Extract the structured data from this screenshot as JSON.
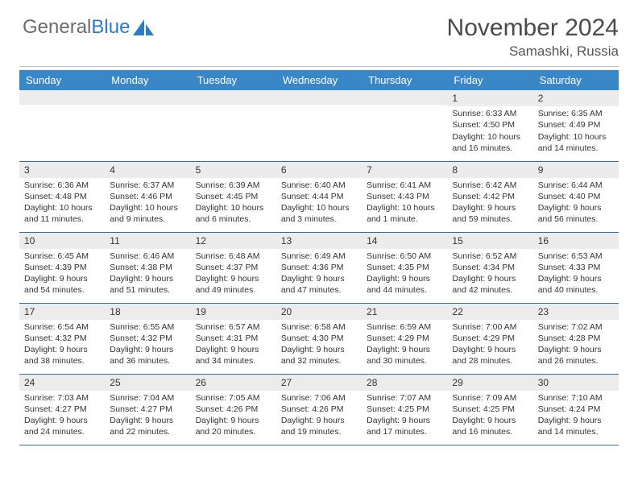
{
  "logo": {
    "text1": "General",
    "text2": "Blue"
  },
  "title": "November 2024",
  "subtitle": "Samashki, Russia",
  "colors": {
    "header_bg": "#3a87c8",
    "header_fg": "#ffffff",
    "daynum_bg": "#ececec",
    "row_border": "#2f6da8",
    "logo_gray": "#6b6b6b",
    "logo_blue": "#2d7bc4"
  },
  "weekdays": [
    "Sunday",
    "Monday",
    "Tuesday",
    "Wednesday",
    "Thursday",
    "Friday",
    "Saturday"
  ],
  "weeks": [
    [
      {
        "n": "",
        "lines": []
      },
      {
        "n": "",
        "lines": []
      },
      {
        "n": "",
        "lines": []
      },
      {
        "n": "",
        "lines": []
      },
      {
        "n": "",
        "lines": []
      },
      {
        "n": "1",
        "lines": [
          "Sunrise: 6:33 AM",
          "Sunset: 4:50 PM",
          "Daylight: 10 hours and 16 minutes."
        ]
      },
      {
        "n": "2",
        "lines": [
          "Sunrise: 6:35 AM",
          "Sunset: 4:49 PM",
          "Daylight: 10 hours and 14 minutes."
        ]
      }
    ],
    [
      {
        "n": "3",
        "lines": [
          "Sunrise: 6:36 AM",
          "Sunset: 4:48 PM",
          "Daylight: 10 hours and 11 minutes."
        ]
      },
      {
        "n": "4",
        "lines": [
          "Sunrise: 6:37 AM",
          "Sunset: 4:46 PM",
          "Daylight: 10 hours and 9 minutes."
        ]
      },
      {
        "n": "5",
        "lines": [
          "Sunrise: 6:39 AM",
          "Sunset: 4:45 PM",
          "Daylight: 10 hours and 6 minutes."
        ]
      },
      {
        "n": "6",
        "lines": [
          "Sunrise: 6:40 AM",
          "Sunset: 4:44 PM",
          "Daylight: 10 hours and 3 minutes."
        ]
      },
      {
        "n": "7",
        "lines": [
          "Sunrise: 6:41 AM",
          "Sunset: 4:43 PM",
          "Daylight: 10 hours and 1 minute."
        ]
      },
      {
        "n": "8",
        "lines": [
          "Sunrise: 6:42 AM",
          "Sunset: 4:42 PM",
          "Daylight: 9 hours and 59 minutes."
        ]
      },
      {
        "n": "9",
        "lines": [
          "Sunrise: 6:44 AM",
          "Sunset: 4:40 PM",
          "Daylight: 9 hours and 56 minutes."
        ]
      }
    ],
    [
      {
        "n": "10",
        "lines": [
          "Sunrise: 6:45 AM",
          "Sunset: 4:39 PM",
          "Daylight: 9 hours and 54 minutes."
        ]
      },
      {
        "n": "11",
        "lines": [
          "Sunrise: 6:46 AM",
          "Sunset: 4:38 PM",
          "Daylight: 9 hours and 51 minutes."
        ]
      },
      {
        "n": "12",
        "lines": [
          "Sunrise: 6:48 AM",
          "Sunset: 4:37 PM",
          "Daylight: 9 hours and 49 minutes."
        ]
      },
      {
        "n": "13",
        "lines": [
          "Sunrise: 6:49 AM",
          "Sunset: 4:36 PM",
          "Daylight: 9 hours and 47 minutes."
        ]
      },
      {
        "n": "14",
        "lines": [
          "Sunrise: 6:50 AM",
          "Sunset: 4:35 PM",
          "Daylight: 9 hours and 44 minutes."
        ]
      },
      {
        "n": "15",
        "lines": [
          "Sunrise: 6:52 AM",
          "Sunset: 4:34 PM",
          "Daylight: 9 hours and 42 minutes."
        ]
      },
      {
        "n": "16",
        "lines": [
          "Sunrise: 6:53 AM",
          "Sunset: 4:33 PM",
          "Daylight: 9 hours and 40 minutes."
        ]
      }
    ],
    [
      {
        "n": "17",
        "lines": [
          "Sunrise: 6:54 AM",
          "Sunset: 4:32 PM",
          "Daylight: 9 hours and 38 minutes."
        ]
      },
      {
        "n": "18",
        "lines": [
          "Sunrise: 6:55 AM",
          "Sunset: 4:32 PM",
          "Daylight: 9 hours and 36 minutes."
        ]
      },
      {
        "n": "19",
        "lines": [
          "Sunrise: 6:57 AM",
          "Sunset: 4:31 PM",
          "Daylight: 9 hours and 34 minutes."
        ]
      },
      {
        "n": "20",
        "lines": [
          "Sunrise: 6:58 AM",
          "Sunset: 4:30 PM",
          "Daylight: 9 hours and 32 minutes."
        ]
      },
      {
        "n": "21",
        "lines": [
          "Sunrise: 6:59 AM",
          "Sunset: 4:29 PM",
          "Daylight: 9 hours and 30 minutes."
        ]
      },
      {
        "n": "22",
        "lines": [
          "Sunrise: 7:00 AM",
          "Sunset: 4:29 PM",
          "Daylight: 9 hours and 28 minutes."
        ]
      },
      {
        "n": "23",
        "lines": [
          "Sunrise: 7:02 AM",
          "Sunset: 4:28 PM",
          "Daylight: 9 hours and 26 minutes."
        ]
      }
    ],
    [
      {
        "n": "24",
        "lines": [
          "Sunrise: 7:03 AM",
          "Sunset: 4:27 PM",
          "Daylight: 9 hours and 24 minutes."
        ]
      },
      {
        "n": "25",
        "lines": [
          "Sunrise: 7:04 AM",
          "Sunset: 4:27 PM",
          "Daylight: 9 hours and 22 minutes."
        ]
      },
      {
        "n": "26",
        "lines": [
          "Sunrise: 7:05 AM",
          "Sunset: 4:26 PM",
          "Daylight: 9 hours and 20 minutes."
        ]
      },
      {
        "n": "27",
        "lines": [
          "Sunrise: 7:06 AM",
          "Sunset: 4:26 PM",
          "Daylight: 9 hours and 19 minutes."
        ]
      },
      {
        "n": "28",
        "lines": [
          "Sunrise: 7:07 AM",
          "Sunset: 4:25 PM",
          "Daylight: 9 hours and 17 minutes."
        ]
      },
      {
        "n": "29",
        "lines": [
          "Sunrise: 7:09 AM",
          "Sunset: 4:25 PM",
          "Daylight: 9 hours and 16 minutes."
        ]
      },
      {
        "n": "30",
        "lines": [
          "Sunrise: 7:10 AM",
          "Sunset: 4:24 PM",
          "Daylight: 9 hours and 14 minutes."
        ]
      }
    ]
  ]
}
